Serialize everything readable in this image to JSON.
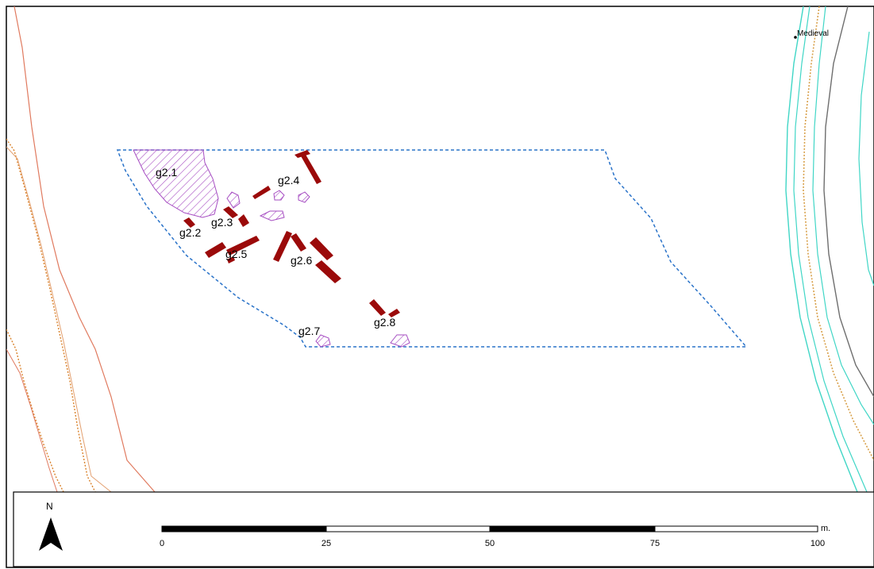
{
  "map": {
    "colors": {
      "trench_outline": "#2a73c9",
      "feature_red": "#9b0a0a",
      "hatch_purple": "#a64dc2",
      "contour_salmon": "#e07a5f",
      "contour_orange": "#d9822b",
      "river_teal": "#40d6c6",
      "river_grey": "#6e6e6e",
      "river_orange": "#d8a04a"
    },
    "annotation": "Medieval",
    "feature_labels": {
      "g2_1": "g2.1",
      "g2_2": "g2.2",
      "g2_3": "g2.3",
      "g2_4": "g2.4",
      "g2_5": "g2.5",
      "g2_6": "g2.6",
      "g2_7": "g2.7",
      "g2_8": "g2.8"
    }
  },
  "legend": {
    "north_label": "N",
    "north_icon": "north-arrow-icon",
    "scale_unit": "m.",
    "scale_ticks": [
      "0",
      "25",
      "50",
      "75",
      "100"
    ]
  }
}
